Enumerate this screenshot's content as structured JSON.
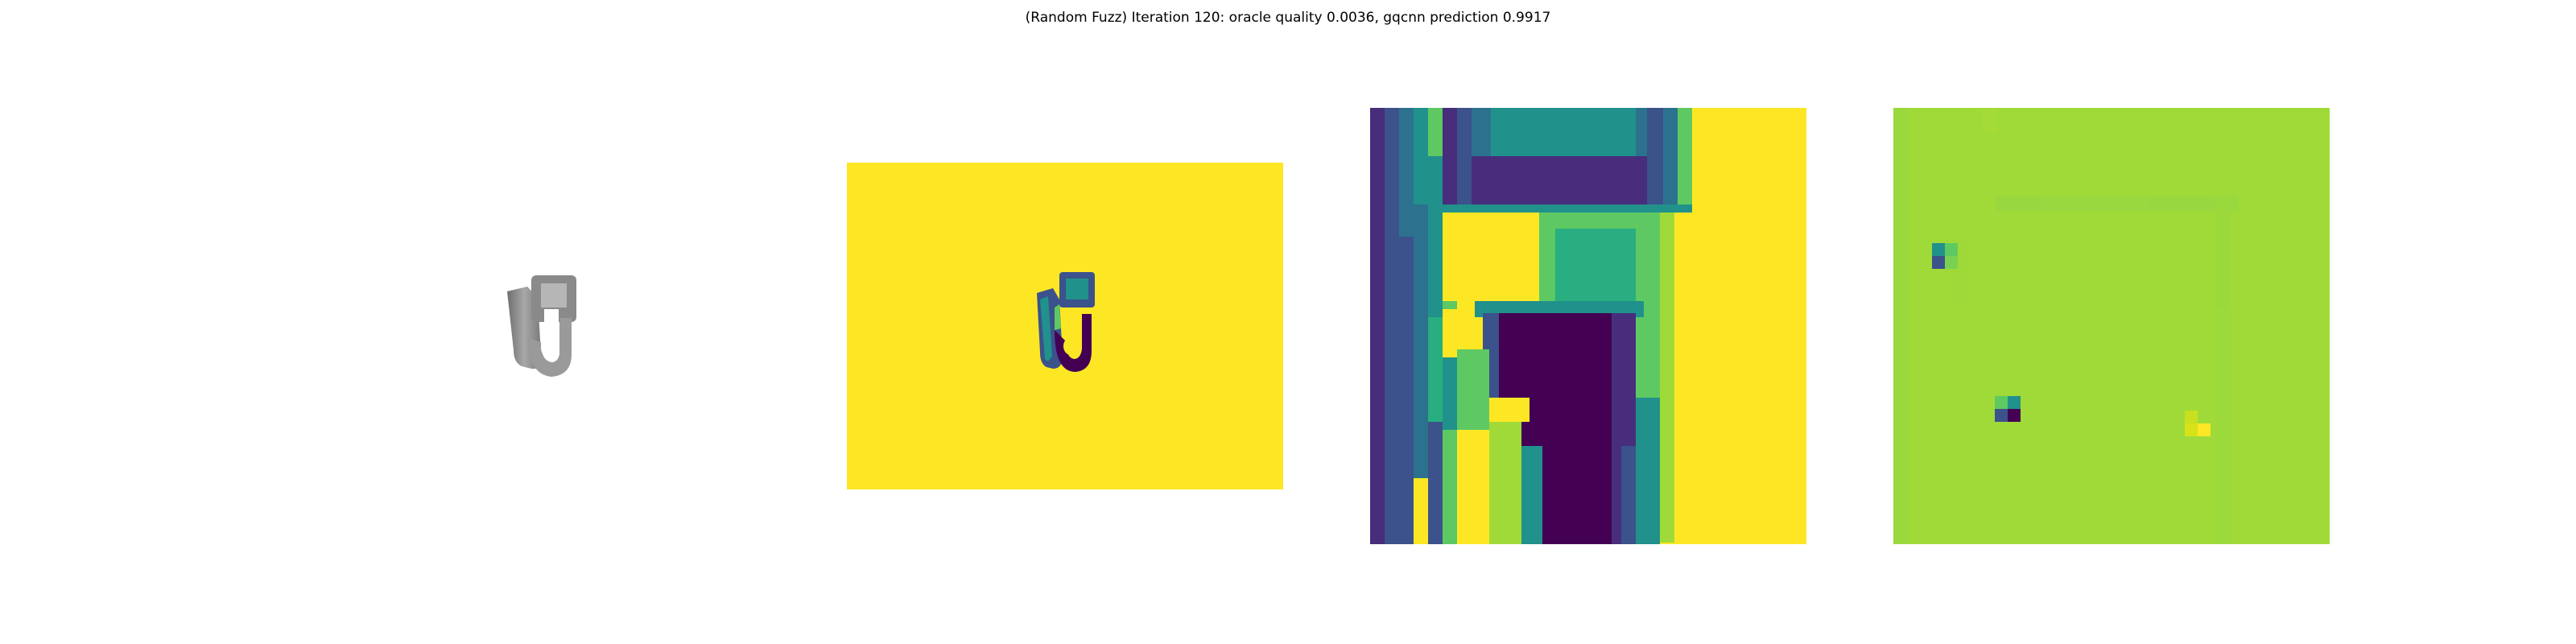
{
  "figure": {
    "title": "(Random Fuzz) Iteration 120: oracle quality 0.0036, gqcnn prediction 0.9917"
  },
  "panels": [
    {
      "id": "rendered-object",
      "content": "grayscale render of a hook-shaped part"
    },
    {
      "id": "depth-image",
      "colormap": "viridis"
    },
    {
      "id": "depth-crop",
      "colormap": "viridis"
    },
    {
      "id": "perturbation-crop",
      "colormap": "viridis"
    }
  ],
  "colors": {
    "viridis_dark": "#440154",
    "viridis_indigo": "#3b528b",
    "viridis_teal": "#21918c",
    "viridis_green": "#5ec962",
    "viridis_lime": "#a0da39",
    "viridis_yellow": "#fde725"
  }
}
